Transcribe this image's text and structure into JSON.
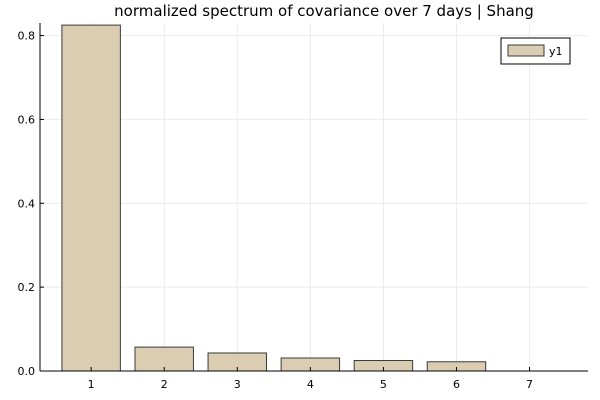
{
  "chart_data": {
    "type": "bar",
    "title": "normalized spectrum of covariance over 7 days | Shang",
    "xlabel": "",
    "ylabel": "",
    "categories": [
      "1",
      "2",
      "3",
      "4",
      "5",
      "6",
      "7"
    ],
    "series": [
      {
        "name": "y1",
        "values": [
          0.825,
          0.057,
          0.043,
          0.031,
          0.025,
          0.022,
          0.0
        ]
      }
    ],
    "xlim": [
      0.3,
      7.8
    ],
    "ylim": [
      0,
      0.83
    ],
    "yticks": [
      "0.0",
      "0.2",
      "0.4",
      "0.6",
      "0.8"
    ],
    "grid": true,
    "legend_position": "top-right",
    "colors": {
      "bar_fill": "#dbcdb1",
      "bar_stroke": "#3a3a3a",
      "grid": "#ebebeb",
      "axis": "#000000"
    }
  }
}
